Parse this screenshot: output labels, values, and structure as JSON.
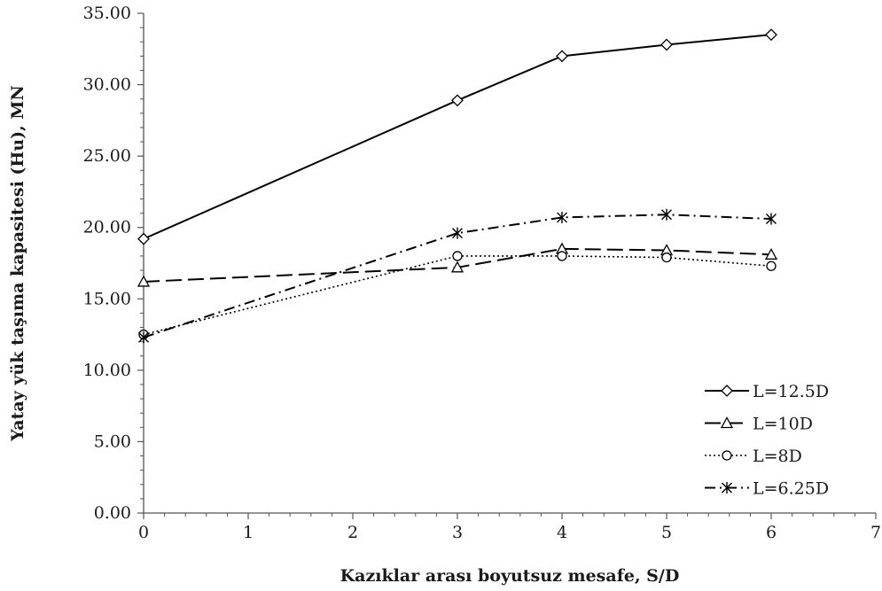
{
  "chart_data": {
    "type": "line",
    "xlabel": "Kazıklar arası boyutsuz mesafe, S/D",
    "ylabel": "Yatay yük taşıma kapasitesi (Hu), MN",
    "xlim": [
      0,
      7
    ],
    "ylim": [
      0,
      35
    ],
    "x_ticks": [
      "0",
      "1",
      "2",
      "3",
      "4",
      "5",
      "6",
      "7"
    ],
    "y_ticks": [
      "0.00",
      "5.00",
      "10.00",
      "15.00",
      "20.00",
      "25.00",
      "30.00",
      "35.00"
    ],
    "grid": false,
    "legend_position": "bottom-right",
    "series": [
      {
        "name": "L=12.5D",
        "marker": "diamond",
        "line_style": "solid",
        "x": [
          0,
          3,
          4,
          5,
          6
        ],
        "y": [
          19.2,
          28.9,
          32.0,
          32.8,
          33.5
        ]
      },
      {
        "name": "L=10D",
        "marker": "triangle",
        "line_style": "long-dash",
        "x": [
          0,
          3,
          4,
          5,
          6
        ],
        "y": [
          16.2,
          17.2,
          18.5,
          18.4,
          18.1
        ]
      },
      {
        "name": "L=8D",
        "marker": "circle",
        "line_style": "dotted",
        "x": [
          0,
          3,
          4,
          5,
          6
        ],
        "y": [
          12.5,
          18.0,
          18.0,
          17.9,
          17.3
        ]
      },
      {
        "name": "L=6.25D",
        "marker": "star",
        "line_style": "dash-dot",
        "x": [
          0,
          3,
          4,
          5,
          6
        ],
        "y": [
          12.3,
          19.6,
          20.7,
          20.9,
          20.6
        ]
      }
    ]
  }
}
